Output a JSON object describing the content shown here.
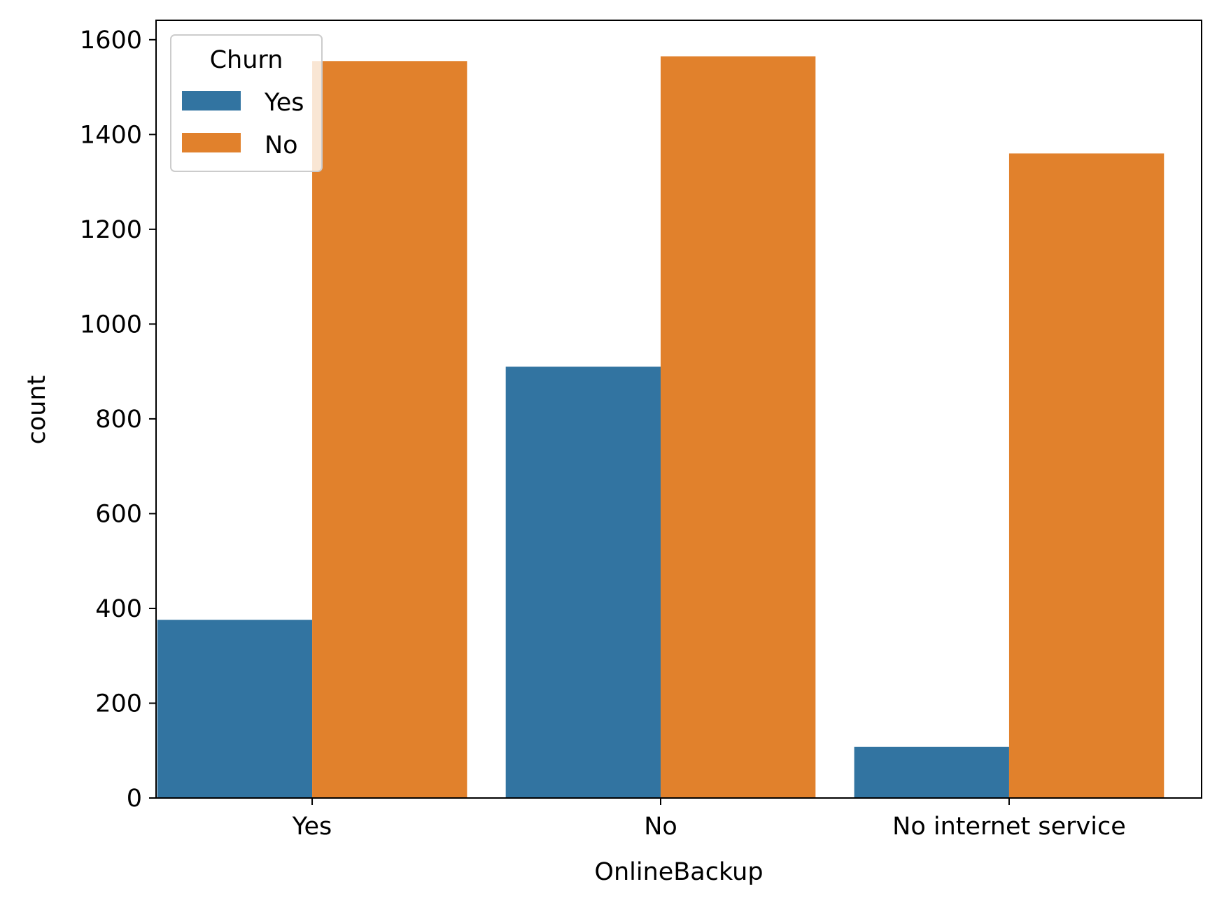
{
  "chart_data": {
    "type": "bar",
    "xlabel": "OnlineBackup",
    "ylabel": "count",
    "categories": [
      "Yes",
      "No",
      "No internet service"
    ],
    "series": [
      {
        "name": "Yes",
        "color": "#3274a1",
        "values": [
          376,
          910,
          108
        ]
      },
      {
        "name": "No",
        "color": "#e1812c",
        "values": [
          1555,
          1565,
          1360
        ]
      }
    ],
    "ylim": [
      0,
      1641
    ],
    "yticks": [
      0,
      200,
      400,
      600,
      800,
      1000,
      1200,
      1400,
      1600
    ],
    "grid": false,
    "legend": {
      "title": "Churn",
      "placement": "top-left"
    }
  }
}
